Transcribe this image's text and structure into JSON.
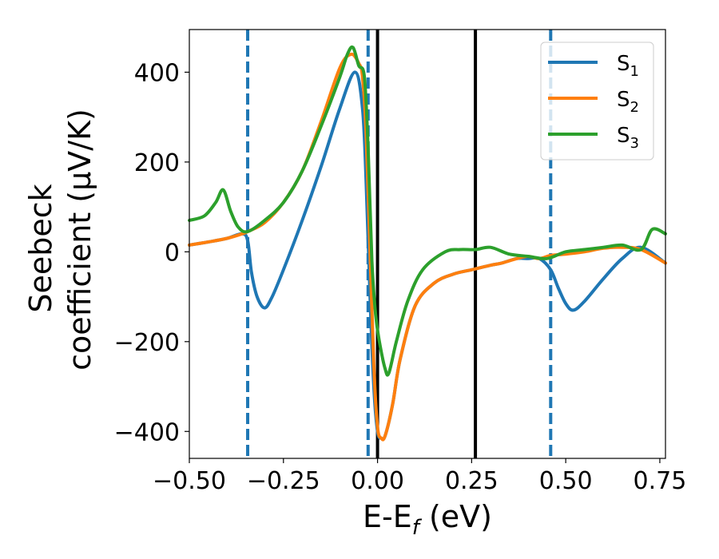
{
  "chart_data": {
    "type": "line",
    "xlabel_main": "E-E",
    "xlabel_sub": "f",
    "xlabel_unit": " (eV)",
    "ylabel_line1": "Seebeck",
    "ylabel_line2": "coefficient  (μV/K)",
    "xlim": [
      -0.5,
      0.765
    ],
    "ylim": [
      -460,
      495
    ],
    "x_ticks": [
      -0.5,
      -0.25,
      0.0,
      0.25,
      0.5,
      0.75
    ],
    "x_tick_labels": [
      "−0.50",
      "−0.25",
      "0.00",
      "0.25",
      "0.50",
      "0.75"
    ],
    "y_ticks": [
      -400,
      -200,
      0,
      200,
      400
    ],
    "y_tick_labels": [
      "−400",
      "−200",
      "0",
      "200",
      "400"
    ],
    "grid": false,
    "legend_position": "top-right",
    "vlines": [
      {
        "x": -0.345,
        "style": "dashed",
        "color": "#1f77b4"
      },
      {
        "x": -0.025,
        "style": "dashed",
        "color": "#1f77b4"
      },
      {
        "x": 0.46,
        "style": "dashed",
        "color": "#1f77b4"
      },
      {
        "x": 0.0,
        "style": "solid",
        "color": "#000000"
      },
      {
        "x": 0.26,
        "style": "solid",
        "color": "#000000"
      }
    ],
    "series": [
      {
        "name": "S",
        "subscript": "1",
        "color": "#1f77b4",
        "x": [
          -0.5,
          -0.45,
          -0.4,
          -0.36,
          -0.345,
          -0.335,
          -0.32,
          -0.3,
          -0.28,
          -0.25,
          -0.2,
          -0.15,
          -0.1,
          -0.06,
          -0.04,
          -0.03,
          -0.02,
          -0.01,
          0.0,
          0.01,
          0.02,
          0.04,
          0.06,
          0.1,
          0.15,
          0.2,
          0.25,
          0.3,
          0.33,
          0.37,
          0.4,
          0.43,
          0.46,
          0.48,
          0.5,
          0.52,
          0.55,
          0.6,
          0.65,
          0.7,
          0.765
        ],
        "y": [
          15,
          22,
          30,
          40,
          25,
          -45,
          -100,
          -125,
          -100,
          -40,
          70,
          190,
          320,
          400,
          320,
          150,
          -100,
          -300,
          -400,
          -415,
          -410,
          -340,
          -240,
          -120,
          -70,
          -50,
          -40,
          -30,
          -25,
          -15,
          -15,
          -15,
          -40,
          -80,
          -115,
          -130,
          -110,
          -60,
          -15,
          10,
          -25
        ]
      },
      {
        "name": "S",
        "subscript": "2",
        "color": "#ff7f0e",
        "x": [
          -0.5,
          -0.45,
          -0.4,
          -0.36,
          -0.345,
          -0.3,
          -0.25,
          -0.2,
          -0.15,
          -0.1,
          -0.07,
          -0.05,
          -0.04,
          -0.03,
          -0.02,
          -0.01,
          0.0,
          0.01,
          0.02,
          0.04,
          0.06,
          0.1,
          0.15,
          0.2,
          0.25,
          0.3,
          0.33,
          0.37,
          0.4,
          0.43,
          0.46,
          0.5,
          0.55,
          0.6,
          0.65,
          0.7,
          0.765
        ],
        "y": [
          15,
          22,
          30,
          40,
          45,
          65,
          110,
          180,
          290,
          410,
          440,
          420,
          390,
          260,
          0,
          -250,
          -390,
          -415,
          -410,
          -340,
          -240,
          -120,
          -70,
          -50,
          -40,
          -30,
          -25,
          -15,
          -10,
          -15,
          -8,
          -5,
          0,
          8,
          10,
          5,
          -25
        ]
      },
      {
        "name": "S",
        "subscript": "3",
        "color": "#2ca02c",
        "x": [
          -0.5,
          -0.46,
          -0.43,
          -0.41,
          -0.39,
          -0.37,
          -0.345,
          -0.3,
          -0.25,
          -0.2,
          -0.15,
          -0.1,
          -0.08,
          -0.065,
          -0.05,
          -0.035,
          -0.025,
          -0.015,
          -0.005,
          0.005,
          0.02,
          0.03,
          0.05,
          0.08,
          0.12,
          0.18,
          0.22,
          0.26,
          0.3,
          0.35,
          0.4,
          0.45,
          0.5,
          0.55,
          0.6,
          0.65,
          0.7,
          0.73,
          0.765
        ],
        "y": [
          70,
          80,
          110,
          138,
          90,
          55,
          45,
          70,
          110,
          180,
          280,
          390,
          440,
          455,
          415,
          390,
          230,
          -20,
          -140,
          -200,
          -260,
          -270,
          -200,
          -110,
          -40,
          0,
          5,
          5,
          10,
          -5,
          -10,
          -15,
          0,
          5,
          10,
          15,
          5,
          50,
          40
        ]
      }
    ]
  }
}
